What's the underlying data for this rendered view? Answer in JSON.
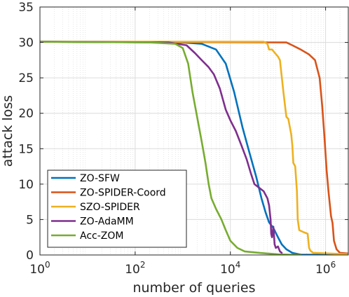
{
  "chart_data": {
    "type": "line",
    "xlabel": "number of queries",
    "ylabel": "attack loss",
    "x_scale": "log",
    "xlim": [
      1,
      3000000
    ],
    "ylim": [
      0,
      35
    ],
    "grid": true,
    "legend_placement": "lower-left",
    "x_ticks": [
      {
        "value": 1,
        "base": "10",
        "exp": "0"
      },
      {
        "value": 100,
        "base": "10",
        "exp": "2"
      },
      {
        "value": 10000,
        "base": "10",
        "exp": "4"
      },
      {
        "value": 1000000,
        "base": "10",
        "exp": "6"
      }
    ],
    "y_ticks": [
      {
        "value": 0,
        "label": "0"
      },
      {
        "value": 5,
        "label": "5"
      },
      {
        "value": 10,
        "label": "10"
      },
      {
        "value": 15,
        "label": "15"
      },
      {
        "value": 20,
        "label": "20"
      },
      {
        "value": 25,
        "label": "25"
      },
      {
        "value": 30,
        "label": "30"
      },
      {
        "value": 35,
        "label": "35"
      }
    ],
    "series": [
      {
        "name": "ZO-SFW",
        "color": "#0072BD",
        "points": [
          [
            1,
            30.1
          ],
          [
            1000,
            30.0
          ],
          [
            2500,
            29.8
          ],
          [
            5000,
            29.0
          ],
          [
            8000,
            27.0
          ],
          [
            12000,
            23.0
          ],
          [
            18000,
            18.0
          ],
          [
            25000,
            14.5
          ],
          [
            35000,
            11.0
          ],
          [
            45000,
            8.0
          ],
          [
            55000,
            6.0
          ],
          [
            65000,
            4.6
          ],
          [
            80000,
            3.8
          ],
          [
            100000,
            2.5
          ],
          [
            120000,
            1.5
          ],
          [
            150000,
            0.8
          ],
          [
            200000,
            0.3
          ],
          [
            300000,
            0.05
          ],
          [
            3000000,
            0.0
          ]
        ]
      },
      {
        "name": "ZO-SPIDER-Coord",
        "color": "#D95319",
        "points": [
          [
            1,
            30.1
          ],
          [
            150000,
            30.0
          ],
          [
            200000,
            29.6
          ],
          [
            300000,
            29.0
          ],
          [
            450000,
            28.3
          ],
          [
            600000,
            27.5
          ],
          [
            750000,
            25.0
          ],
          [
            850000,
            21.0
          ],
          [
            950000,
            16.5
          ],
          [
            1050000,
            12.0
          ],
          [
            1150000,
            9.0
          ],
          [
            1300000,
            5.5
          ],
          [
            1400000,
            4.5
          ],
          [
            1500000,
            2.0
          ],
          [
            1700000,
            0.8
          ],
          [
            2000000,
            0.3
          ],
          [
            3000000,
            0.2
          ]
        ]
      },
      {
        "name": "SZO-SPIDER",
        "color": "#EDB120",
        "points": [
          [
            1,
            30.1
          ],
          [
            50000,
            30.1
          ],
          [
            60000,
            29.8
          ],
          [
            65000,
            29.0
          ],
          [
            75000,
            29.0
          ],
          [
            100000,
            28.0
          ],
          [
            110000,
            27.5
          ],
          [
            130000,
            23.0
          ],
          [
            150000,
            19.5
          ],
          [
            165000,
            19.2
          ],
          [
            190000,
            17.0
          ],
          [
            200000,
            15.5
          ],
          [
            210000,
            13.0
          ],
          [
            230000,
            12.5
          ],
          [
            250000,
            9.0
          ],
          [
            260000,
            5.0
          ],
          [
            280000,
            3.5
          ],
          [
            350000,
            3.2
          ],
          [
            420000,
            3.0
          ],
          [
            450000,
            1.0
          ],
          [
            480000,
            0.6
          ],
          [
            550000,
            0.3
          ],
          [
            3000000,
            0.1
          ]
        ]
      },
      {
        "name": "ZO-AdaMM",
        "color": "#7E2F8E",
        "points": [
          [
            1,
            30.1
          ],
          [
            500,
            30.0
          ],
          [
            1200,
            29.6
          ],
          [
            1800,
            28.5
          ],
          [
            2500,
            27.5
          ],
          [
            3500,
            26.5
          ],
          [
            4500,
            25.5
          ],
          [
            6000,
            23.5
          ],
          [
            8000,
            20.5
          ],
          [
            10000,
            19.0
          ],
          [
            13000,
            17.5
          ],
          [
            17000,
            15.5
          ],
          [
            22000,
            13.5
          ],
          [
            27000,
            11.5
          ],
          [
            32000,
            10.0
          ],
          [
            40000,
            9.5
          ],
          [
            50000,
            9.0
          ],
          [
            60000,
            8.0
          ],
          [
            65000,
            7.0
          ],
          [
            70000,
            5.0
          ],
          [
            72000,
            3.0
          ],
          [
            75000,
            2.5
          ],
          [
            80000,
            4.0
          ],
          [
            85000,
            1.5
          ],
          [
            90000,
            1.0
          ],
          [
            100000,
            1.2
          ],
          [
            110000,
            0.5
          ],
          [
            120000,
            0.3
          ]
        ]
      },
      {
        "name": "Acc-ZOM",
        "color": "#77AC30",
        "points": [
          [
            1,
            30.1
          ],
          [
            200,
            30.0
          ],
          [
            700,
            29.8
          ],
          [
            1000,
            29.2
          ],
          [
            1300,
            27.0
          ],
          [
            1600,
            23.0
          ],
          [
            2000,
            19.5
          ],
          [
            2500,
            16.0
          ],
          [
            3000,
            13.0
          ],
          [
            3500,
            10.0
          ],
          [
            4000,
            8.0
          ],
          [
            5000,
            6.5
          ],
          [
            6500,
            5.0
          ],
          [
            8000,
            3.5
          ],
          [
            10000,
            2.0
          ],
          [
            14000,
            1.0
          ],
          [
            20000,
            0.5
          ],
          [
            40000,
            0.3
          ],
          [
            100000,
            0.1
          ],
          [
            300000,
            0.0
          ]
        ]
      }
    ]
  }
}
